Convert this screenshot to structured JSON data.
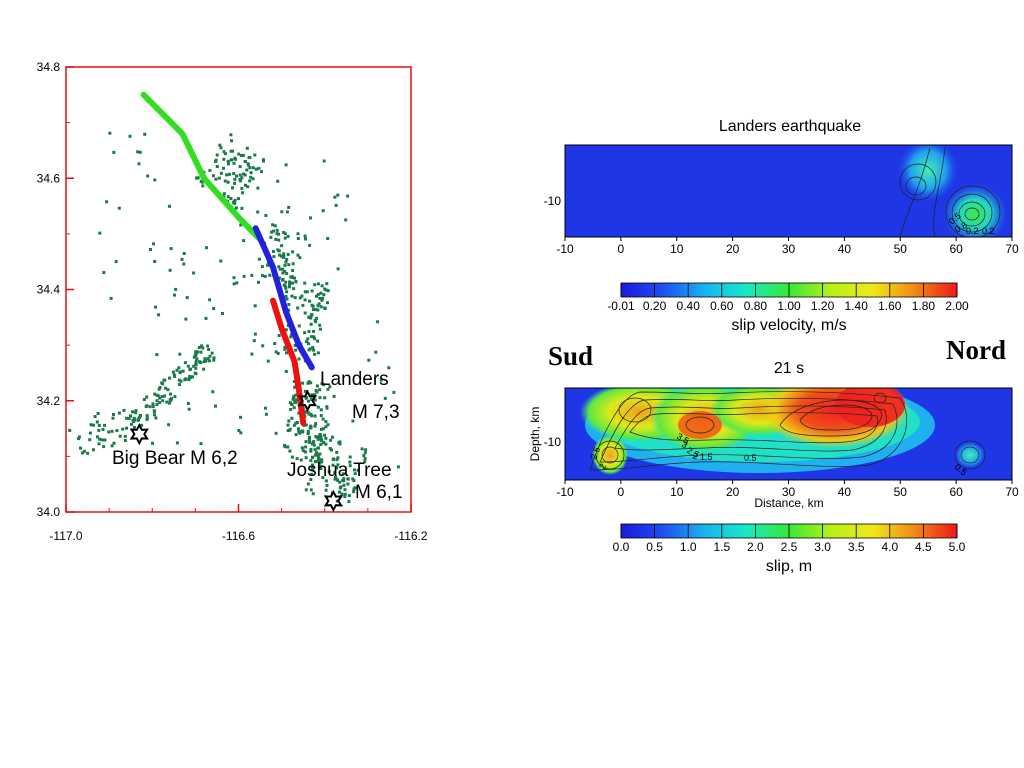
{
  "labels": {
    "sud": "Sud",
    "nord": "Nord"
  },
  "chart_data": [
    {
      "type": "scatter",
      "ylim": [
        34.0,
        34.8
      ],
      "xlim": [
        -117.0,
        -116.2
      ],
      "xticks": [
        "-117.0",
        "-116.6",
        "-116.2"
      ],
      "yticks": [
        "34.8",
        "34.6",
        "34.4",
        "34.2",
        "34.0"
      ],
      "axis_color": "#e01010",
      "events": [
        {
          "name": "Landers",
          "magnitude": "M 7,3",
          "x": -116.44,
          "y": 34.2
        },
        {
          "name": "Big Bear M 6,2",
          "magnitude": "",
          "x": -116.83,
          "y": 34.14
        },
        {
          "name": "Joshua Tree",
          "magnitude": "M 6,1",
          "x": -116.38,
          "y": 34.02
        }
      ],
      "fault_segments": [
        {
          "color": "#33dd22",
          "points": [
            [
              -116.82,
              34.75
            ],
            [
              -116.73,
              34.68
            ],
            [
              -116.68,
              34.6
            ],
            [
              -116.6,
              34.53
            ],
            [
              -116.55,
              34.49
            ]
          ]
        },
        {
          "color": "#2222dd",
          "points": [
            [
              -116.56,
              34.51
            ],
            [
              -116.52,
              34.44
            ],
            [
              -116.49,
              34.36
            ],
            [
              -116.46,
              34.3
            ],
            [
              -116.43,
              34.26
            ]
          ]
        },
        {
          "color": "#ee1111",
          "points": [
            [
              -116.52,
              34.38
            ],
            [
              -116.5,
              34.33
            ],
            [
              -116.47,
              34.27
            ],
            [
              -116.46,
              34.22
            ],
            [
              -116.45,
              34.16
            ]
          ]
        }
      ],
      "seismicity_color": "#1a7a4a"
    },
    {
      "type": "heatmap",
      "title": "Landers earthquake",
      "xticks": [
        "-10",
        "0",
        "10",
        "20",
        "30",
        "40",
        "50",
        "60",
        "70"
      ],
      "yticks": [
        "-10"
      ],
      "xlim": [
        -10,
        70
      ],
      "colorbar": {
        "ticks": [
          "-0.01",
          "0.20",
          "0.40",
          "0.60",
          "0.80",
          "1.00",
          "1.20",
          "1.40",
          "1.60",
          "1.80",
          "2.00"
        ],
        "label": "slip velocity, m/s"
      },
      "hotspots": [
        {
          "x": 63,
          "y": -10.5,
          "value": 1.0
        },
        {
          "x": 53,
          "y": -8.5,
          "value": 0.6
        }
      ],
      "contour_labels": [
        "0.5",
        "0.8",
        "0.2",
        "0.2"
      ]
    },
    {
      "type": "heatmap",
      "title": "21 s",
      "xlabel": "Distance, km",
      "ylabel": "Depth, km",
      "xticks": [
        "-10",
        "0",
        "10",
        "20",
        "30",
        "40",
        "50",
        "60",
        "70"
      ],
      "yticks": [
        "-10"
      ],
      "xlim": [
        -10,
        70
      ],
      "colorbar": {
        "ticks": [
          "0.0",
          "0.5",
          "1.0",
          "1.5",
          "2.0",
          "2.5",
          "3.0",
          "3.5",
          "4.0",
          "4.5",
          "5.0"
        ],
        "label": "slip, m"
      },
      "contour_labels": [
        "2.5",
        "2",
        "3.5",
        "3",
        "2.5",
        "2",
        "1.5",
        "0.5",
        "0.5"
      ]
    }
  ]
}
